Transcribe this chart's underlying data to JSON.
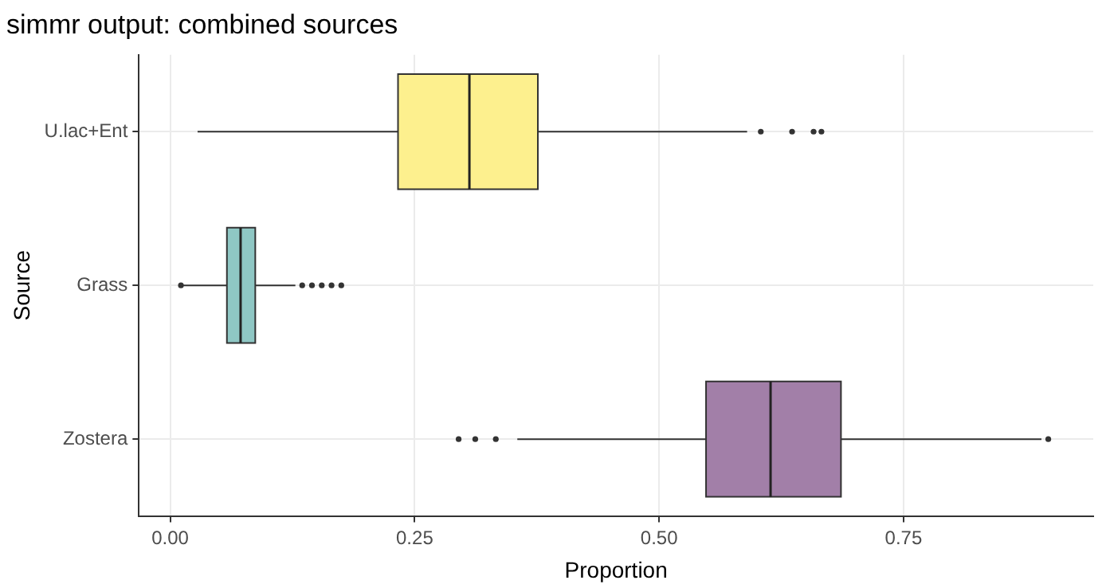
{
  "chart_data": {
    "type": "box",
    "title": "simmr output: combined sources",
    "xlabel": "Proportion",
    "ylabel": "Source",
    "orientation": "horizontal",
    "categories": [
      "U.lac+Ent",
      "Grass",
      "Zostera"
    ],
    "colors": [
      "#fdf08e",
      "#8fc7c4",
      "#a27fa8"
    ],
    "boxes": [
      {
        "low": 0.028,
        "q1": 0.233,
        "median": 0.306,
        "q3": 0.376,
        "high": 0.59,
        "outliers": [
          0.604,
          0.636,
          0.658,
          0.666
        ]
      },
      {
        "low": 0.013,
        "q1": 0.058,
        "median": 0.072,
        "q3": 0.087,
        "high": 0.128,
        "outliers": [
          0.011,
          0.135,
          0.145,
          0.155,
          0.165,
          0.175
        ]
      },
      {
        "low": 0.355,
        "q1": 0.548,
        "median": 0.614,
        "q3": 0.686,
        "high": 0.891,
        "outliers": [
          0.295,
          0.312,
          0.333,
          0.898
        ]
      }
    ],
    "xlim": [
      -0.032,
      0.944
    ],
    "xticks": [
      {
        "value": 0,
        "label": "0.00"
      },
      {
        "value": 0.25,
        "label": "0.25"
      },
      {
        "value": 0.5,
        "label": "0.50"
      },
      {
        "value": 0.75,
        "label": "0.75"
      }
    ],
    "grid": true,
    "legend": false
  }
}
